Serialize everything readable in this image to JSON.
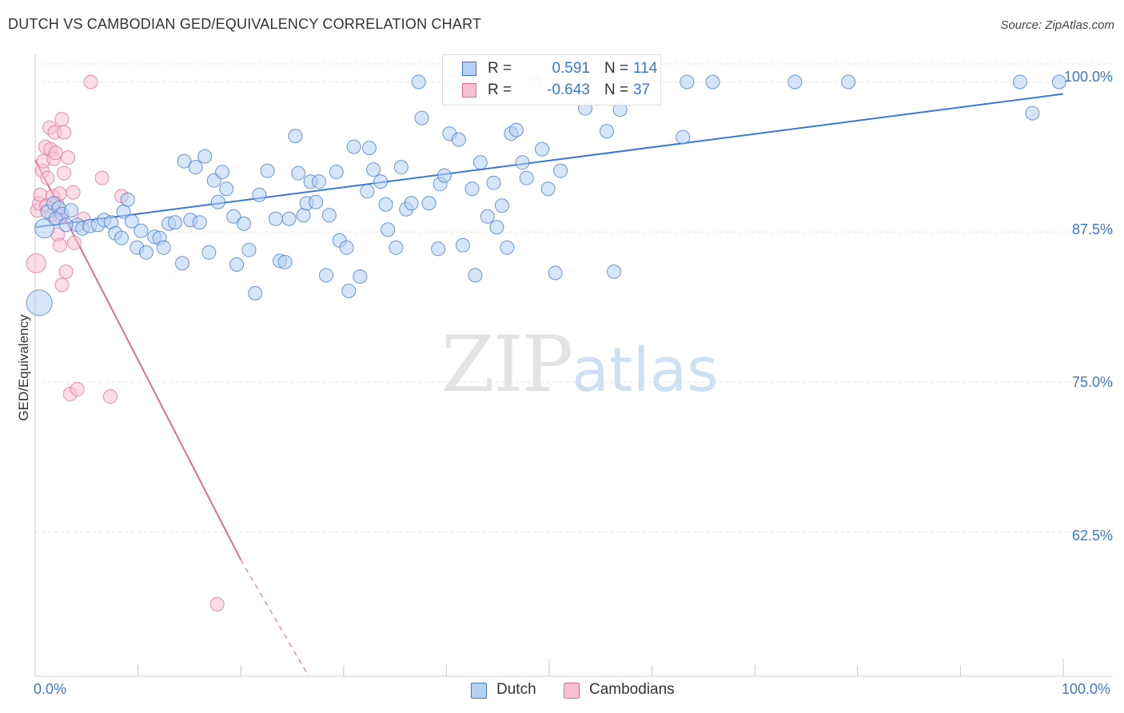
{
  "title": "DUTCH VS CAMBODIAN GED/EQUIVALENCY CORRELATION CHART",
  "source": "Source: ZipAtlas.com",
  "watermark": {
    "zip": "ZIP",
    "atlas": "atlas"
  },
  "colors": {
    "dutch": "#3b78d0",
    "dutch_fill": "#b5d0f3",
    "camb": "#e46b94",
    "camb_fill": "#f8c1d2",
    "grid": "#e6e6e6",
    "axis_text": "#3b78d0"
  },
  "legend": {
    "dutch": {
      "r_label": "R =",
      "r_value": "0.591",
      "n_label": "N =",
      "n_value": "114"
    },
    "camb": {
      "r_label": "R =",
      "r_value": "-0.643",
      "n_label": "N =",
      "n_value": "37"
    }
  },
  "chart_data": {
    "type": "scatter",
    "title": "DUTCH VS CAMBODIAN GED/EQUIVALENCY CORRELATION CHART",
    "xlabel": "",
    "ylabel": "GED/Equivalency",
    "xlim": [
      0,
      100
    ],
    "ylim": [
      50.5,
      101.5
    ],
    "x_tick_labels": {
      "left": "0.0%",
      "right": "100.0%"
    },
    "y_ticks": [
      {
        "value": 100,
        "label": "100.0%"
      },
      {
        "value": 87.5,
        "label": "87.5%"
      },
      {
        "value": 75,
        "label": "75.0%"
      },
      {
        "value": 62.5,
        "label": "62.5%"
      }
    ],
    "legend": [
      "Dutch",
      "Cambodians"
    ],
    "series": [
      {
        "name": "Dutch",
        "color": "#3b78d0",
        "r": 0.591,
        "n": 114,
        "trend": {
          "x": [
            0,
            100
          ],
          "y": [
            87.9,
            99.0
          ]
        },
        "points": [
          {
            "x": 0.4,
            "y": 81.6,
            "s": 3
          },
          {
            "x": 0.9,
            "y": 87.8,
            "s": 2
          },
          {
            "x": 1.2,
            "y": 89.2
          },
          {
            "x": 1.8,
            "y": 89.9
          },
          {
            "x": 2.3,
            "y": 89.5
          },
          {
            "x": 2.6,
            "y": 89.0
          },
          {
            "x": 3.5,
            "y": 89.3
          },
          {
            "x": 4.1,
            "y": 88.1
          },
          {
            "x": 4.6,
            "y": 87.8
          },
          {
            "x": 5.3,
            "y": 88.0
          },
          {
            "x": 6.1,
            "y": 88.1
          },
          {
            "x": 6.7,
            "y": 88.5
          },
          {
            "x": 7.4,
            "y": 88.3
          },
          {
            "x": 7.8,
            "y": 87.4
          },
          {
            "x": 8.6,
            "y": 89.2
          },
          {
            "x": 8.4,
            "y": 87.0
          },
          {
            "x": 9.0,
            "y": 90.2
          },
          {
            "x": 9.4,
            "y": 88.4
          },
          {
            "x": 9.9,
            "y": 86.2
          },
          {
            "x": 10.3,
            "y": 87.6
          },
          {
            "x": 10.8,
            "y": 85.8
          },
          {
            "x": 11.6,
            "y": 87.1
          },
          {
            "x": 12.1,
            "y": 87.0
          },
          {
            "x": 12.5,
            "y": 86.2
          },
          {
            "x": 13.0,
            "y": 88.2
          },
          {
            "x": 13.6,
            "y": 88.3
          },
          {
            "x": 14.3,
            "y": 84.9
          },
          {
            "x": 14.5,
            "y": 93.4
          },
          {
            "x": 15.1,
            "y": 88.5
          },
          {
            "x": 15.6,
            "y": 92.9
          },
          {
            "x": 16.0,
            "y": 88.3
          },
          {
            "x": 16.5,
            "y": 93.8
          },
          {
            "x": 16.9,
            "y": 85.8
          },
          {
            "x": 17.4,
            "y": 91.8
          },
          {
            "x": 17.8,
            "y": 90.0
          },
          {
            "x": 18.2,
            "y": 92.5
          },
          {
            "x": 18.6,
            "y": 91.1
          },
          {
            "x": 19.3,
            "y": 88.8
          },
          {
            "x": 19.6,
            "y": 84.8
          },
          {
            "x": 20.3,
            "y": 88.2
          },
          {
            "x": 20.8,
            "y": 86.0
          },
          {
            "x": 21.4,
            "y": 82.4
          },
          {
            "x": 21.8,
            "y": 90.6
          },
          {
            "x": 22.6,
            "y": 92.6
          },
          {
            "x": 23.4,
            "y": 88.6
          },
          {
            "x": 23.8,
            "y": 85.1
          },
          {
            "x": 24.3,
            "y": 85.0
          },
          {
            "x": 24.7,
            "y": 88.6
          },
          {
            "x": 25.3,
            "y": 95.5
          },
          {
            "x": 25.6,
            "y": 92.4
          },
          {
            "x": 26.1,
            "y": 88.9
          },
          {
            "x": 26.4,
            "y": 89.9
          },
          {
            "x": 26.8,
            "y": 91.7
          },
          {
            "x": 27.3,
            "y": 90.0
          },
          {
            "x": 27.6,
            "y": 91.7
          },
          {
            "x": 28.3,
            "y": 83.9
          },
          {
            "x": 28.6,
            "y": 88.9
          },
          {
            "x": 29.3,
            "y": 92.5
          },
          {
            "x": 29.6,
            "y": 86.8
          },
          {
            "x": 30.3,
            "y": 86.2
          },
          {
            "x": 30.5,
            "y": 82.6
          },
          {
            "x": 31.0,
            "y": 94.6
          },
          {
            "x": 31.6,
            "y": 83.8
          },
          {
            "x": 32.3,
            "y": 90.9
          },
          {
            "x": 32.5,
            "y": 94.5
          },
          {
            "x": 32.9,
            "y": 92.7
          },
          {
            "x": 33.6,
            "y": 91.7
          },
          {
            "x": 34.1,
            "y": 89.8
          },
          {
            "x": 34.3,
            "y": 87.7
          },
          {
            "x": 35.1,
            "y": 86.2
          },
          {
            "x": 35.6,
            "y": 92.9
          },
          {
            "x": 36.1,
            "y": 89.4
          },
          {
            "x": 36.6,
            "y": 89.9
          },
          {
            "x": 37.3,
            "y": 100.0
          },
          {
            "x": 37.6,
            "y": 97.0
          },
          {
            "x": 38.3,
            "y": 89.9
          },
          {
            "x": 39.2,
            "y": 86.1
          },
          {
            "x": 39.4,
            "y": 91.5
          },
          {
            "x": 39.8,
            "y": 92.2
          },
          {
            "x": 40.3,
            "y": 95.7
          },
          {
            "x": 40.6,
            "y": 100.0
          },
          {
            "x": 41.2,
            "y": 95.2
          },
          {
            "x": 41.6,
            "y": 86.4
          },
          {
            "x": 42.5,
            "y": 91.1
          },
          {
            "x": 42.8,
            "y": 83.9
          },
          {
            "x": 43.3,
            "y": 93.3
          },
          {
            "x": 44.0,
            "y": 88.8
          },
          {
            "x": 44.6,
            "y": 91.6
          },
          {
            "x": 44.9,
            "y": 87.9
          },
          {
            "x": 45.4,
            "y": 89.7
          },
          {
            "x": 45.9,
            "y": 86.2
          },
          {
            "x": 46.3,
            "y": 95.7
          },
          {
            "x": 46.8,
            "y": 96.0
          },
          {
            "x": 47.4,
            "y": 93.3
          },
          {
            "x": 47.8,
            "y": 92.0
          },
          {
            "x": 48.6,
            "y": 100.0
          },
          {
            "x": 49.3,
            "y": 94.4
          },
          {
            "x": 49.9,
            "y": 91.1
          },
          {
            "x": 50.6,
            "y": 84.1
          },
          {
            "x": 51.1,
            "y": 92.6
          },
          {
            "x": 53.5,
            "y": 97.8
          },
          {
            "x": 55.6,
            "y": 95.9
          },
          {
            "x": 56.3,
            "y": 84.2
          },
          {
            "x": 56.9,
            "y": 97.7
          },
          {
            "x": 63.0,
            "y": 95.4
          },
          {
            "x": 63.4,
            "y": 100.0
          },
          {
            "x": 65.9,
            "y": 100.0
          },
          {
            "x": 73.9,
            "y": 100.0
          },
          {
            "x": 79.1,
            "y": 100.0
          },
          {
            "x": 95.8,
            "y": 100.0
          },
          {
            "x": 97.0,
            "y": 97.4
          },
          {
            "x": 99.6,
            "y": 100.0
          },
          {
            "x": 2.0,
            "y": 88.6
          },
          {
            "x": 3.0,
            "y": 88.1
          }
        ]
      },
      {
        "name": "Cambodians",
        "color": "#e46b94",
        "r": -0.643,
        "n": 37,
        "trend": {
          "x": [
            0,
            20
          ],
          "y": [
            93.5,
            60.2
          ]
        },
        "trend_dashed": {
          "x": [
            20,
            26.6
          ],
          "y": [
            60.2,
            50.5
          ]
        },
        "points": [
          {
            "x": 0.1,
            "y": 84.9,
            "s": 2
          },
          {
            "x": 0.2,
            "y": 89.3
          },
          {
            "x": 0.4,
            "y": 89.9
          },
          {
            "x": 0.5,
            "y": 90.6
          },
          {
            "x": 0.7,
            "y": 92.6
          },
          {
            "x": 0.8,
            "y": 93.4
          },
          {
            "x": 1.0,
            "y": 94.6
          },
          {
            "x": 1.1,
            "y": 89.7
          },
          {
            "x": 1.2,
            "y": 92.0
          },
          {
            "x": 1.4,
            "y": 96.2
          },
          {
            "x": 1.5,
            "y": 94.4
          },
          {
            "x": 1.6,
            "y": 88.9
          },
          {
            "x": 1.7,
            "y": 90.5
          },
          {
            "x": 1.8,
            "y": 93.6
          },
          {
            "x": 1.9,
            "y": 95.8
          },
          {
            "x": 2.0,
            "y": 94.1
          },
          {
            "x": 2.1,
            "y": 89.9
          },
          {
            "x": 2.2,
            "y": 87.3
          },
          {
            "x": 2.4,
            "y": 86.4
          },
          {
            "x": 2.4,
            "y": 90.7
          },
          {
            "x": 2.5,
            "y": 88.8
          },
          {
            "x": 2.6,
            "y": 96.9
          },
          {
            "x": 2.6,
            "y": 83.1
          },
          {
            "x": 2.8,
            "y": 95.8
          },
          {
            "x": 2.8,
            "y": 92.4
          },
          {
            "x": 3.0,
            "y": 84.2
          },
          {
            "x": 3.2,
            "y": 93.7
          },
          {
            "x": 3.4,
            "y": 74.0
          },
          {
            "x": 3.7,
            "y": 90.8
          },
          {
            "x": 3.8,
            "y": 86.6
          },
          {
            "x": 4.1,
            "y": 74.4
          },
          {
            "x": 5.4,
            "y": 100.0
          },
          {
            "x": 6.5,
            "y": 92.0
          },
          {
            "x": 8.4,
            "y": 90.5
          },
          {
            "x": 7.3,
            "y": 73.8
          },
          {
            "x": 17.7,
            "y": 56.5
          },
          {
            "x": 4.7,
            "y": 88.6
          }
        ]
      }
    ]
  }
}
